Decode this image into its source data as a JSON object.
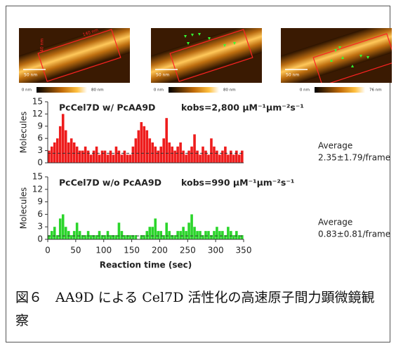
{
  "images": [
    {
      "scale": "50 nm",
      "cbar_min": "0 nm",
      "cbar_max": "80 nm",
      "length_label": "140 nm",
      "width_label": "40 nm"
    },
    {
      "scale": "50 nm",
      "cbar_min": "0 nm",
      "cbar_max": "80 nm"
    },
    {
      "scale": "50 nm",
      "cbar_min": "0 nm",
      "cbar_max": "76 nm"
    }
  ],
  "chart_data": [
    {
      "type": "bar",
      "title": "PcCel7D w/ PcAA9D",
      "annotation": "kobs=2,800 μM⁻¹μm⁻²s⁻¹",
      "ylabel": "Molecules",
      "color": "#ee1c1c",
      "x": [
        0,
        5,
        10,
        15,
        20,
        25,
        30,
        35,
        40,
        45,
        50,
        55,
        60,
        65,
        70,
        75,
        80,
        85,
        90,
        95,
        100,
        105,
        110,
        115,
        120,
        125,
        130,
        135,
        140,
        145,
        150,
        155,
        160,
        165,
        170,
        175,
        180,
        185,
        190,
        195,
        200,
        205,
        210,
        215,
        220,
        225,
        230,
        235,
        240,
        245,
        250,
        255,
        260,
        265,
        270,
        275,
        280,
        285,
        290,
        295,
        300,
        305,
        310,
        315,
        320,
        325,
        330,
        335,
        340,
        345
      ],
      "values": [
        3,
        4,
        5,
        6,
        9,
        12,
        8,
        5,
        6,
        5,
        4,
        3,
        3,
        4,
        3,
        2,
        3,
        4,
        2,
        3,
        3,
        2,
        3,
        2,
        4,
        3,
        2,
        3,
        2,
        2,
        4,
        6,
        8,
        10,
        9,
        8,
        6,
        5,
        4,
        3,
        4,
        6,
        11,
        5,
        4,
        3,
        4,
        5,
        3,
        2,
        3,
        4,
        7,
        3,
        2,
        4,
        3,
        2,
        6,
        4,
        3,
        2,
        3,
        4,
        2,
        3,
        2,
        3,
        2,
        3
      ],
      "mean": 2.35,
      "mean_title": "Average",
      "mean_label": "2.35±1.79/frame",
      "xlim": [
        0,
        350
      ],
      "ylim": [
        0,
        15
      ],
      "yticks": [
        0,
        3,
        6,
        9,
        12,
        15
      ]
    },
    {
      "type": "bar",
      "title": "PcCel7D w/o PcAA9D",
      "annotation": "kobs=990 μM⁻¹μm⁻²s⁻¹",
      "ylabel": "Molecules",
      "xlabel": "Reaction time (sec)",
      "color": "#2bd52b",
      "x": [
        0,
        5,
        10,
        15,
        20,
        25,
        30,
        35,
        40,
        45,
        50,
        55,
        60,
        65,
        70,
        75,
        80,
        85,
        90,
        95,
        100,
        105,
        110,
        115,
        120,
        125,
        130,
        135,
        140,
        145,
        150,
        155,
        160,
        165,
        170,
        175,
        180,
        185,
        190,
        195,
        200,
        205,
        210,
        215,
        220,
        225,
        230,
        235,
        240,
        245,
        250,
        255,
        260,
        265,
        270,
        275,
        280,
        285,
        290,
        295,
        300,
        305,
        310,
        315,
        320,
        325,
        330,
        335,
        340,
        345
      ],
      "values": [
        1,
        2,
        3,
        1,
        5,
        6,
        3,
        2,
        1,
        2,
        4,
        2,
        1,
        1,
        2,
        1,
        1,
        1,
        2,
        1,
        1,
        2,
        1,
        1,
        1,
        4,
        2,
        1,
        1,
        1,
        1,
        1,
        0,
        1,
        1,
        2,
        3,
        3,
        5,
        2,
        2,
        1,
        4,
        2,
        1,
        1,
        2,
        2,
        3,
        2,
        4,
        6,
        3,
        2,
        2,
        1,
        2,
        2,
        1,
        2,
        3,
        2,
        2,
        1,
        3,
        2,
        1,
        2,
        1,
        1
      ],
      "mean": 0.83,
      "mean_title": "Average",
      "mean_label": "0.83±0.81/frame",
      "xlim": [
        0,
        350
      ],
      "ylim": [
        0,
        15
      ],
      "yticks": [
        0,
        3,
        6,
        9,
        12,
        15
      ],
      "xticks": [
        0,
        50,
        100,
        150,
        200,
        250,
        300,
        350
      ]
    }
  ],
  "caption": "図６　AA9D による Cel7D 活性化の高速原子間力顕微鏡観察"
}
